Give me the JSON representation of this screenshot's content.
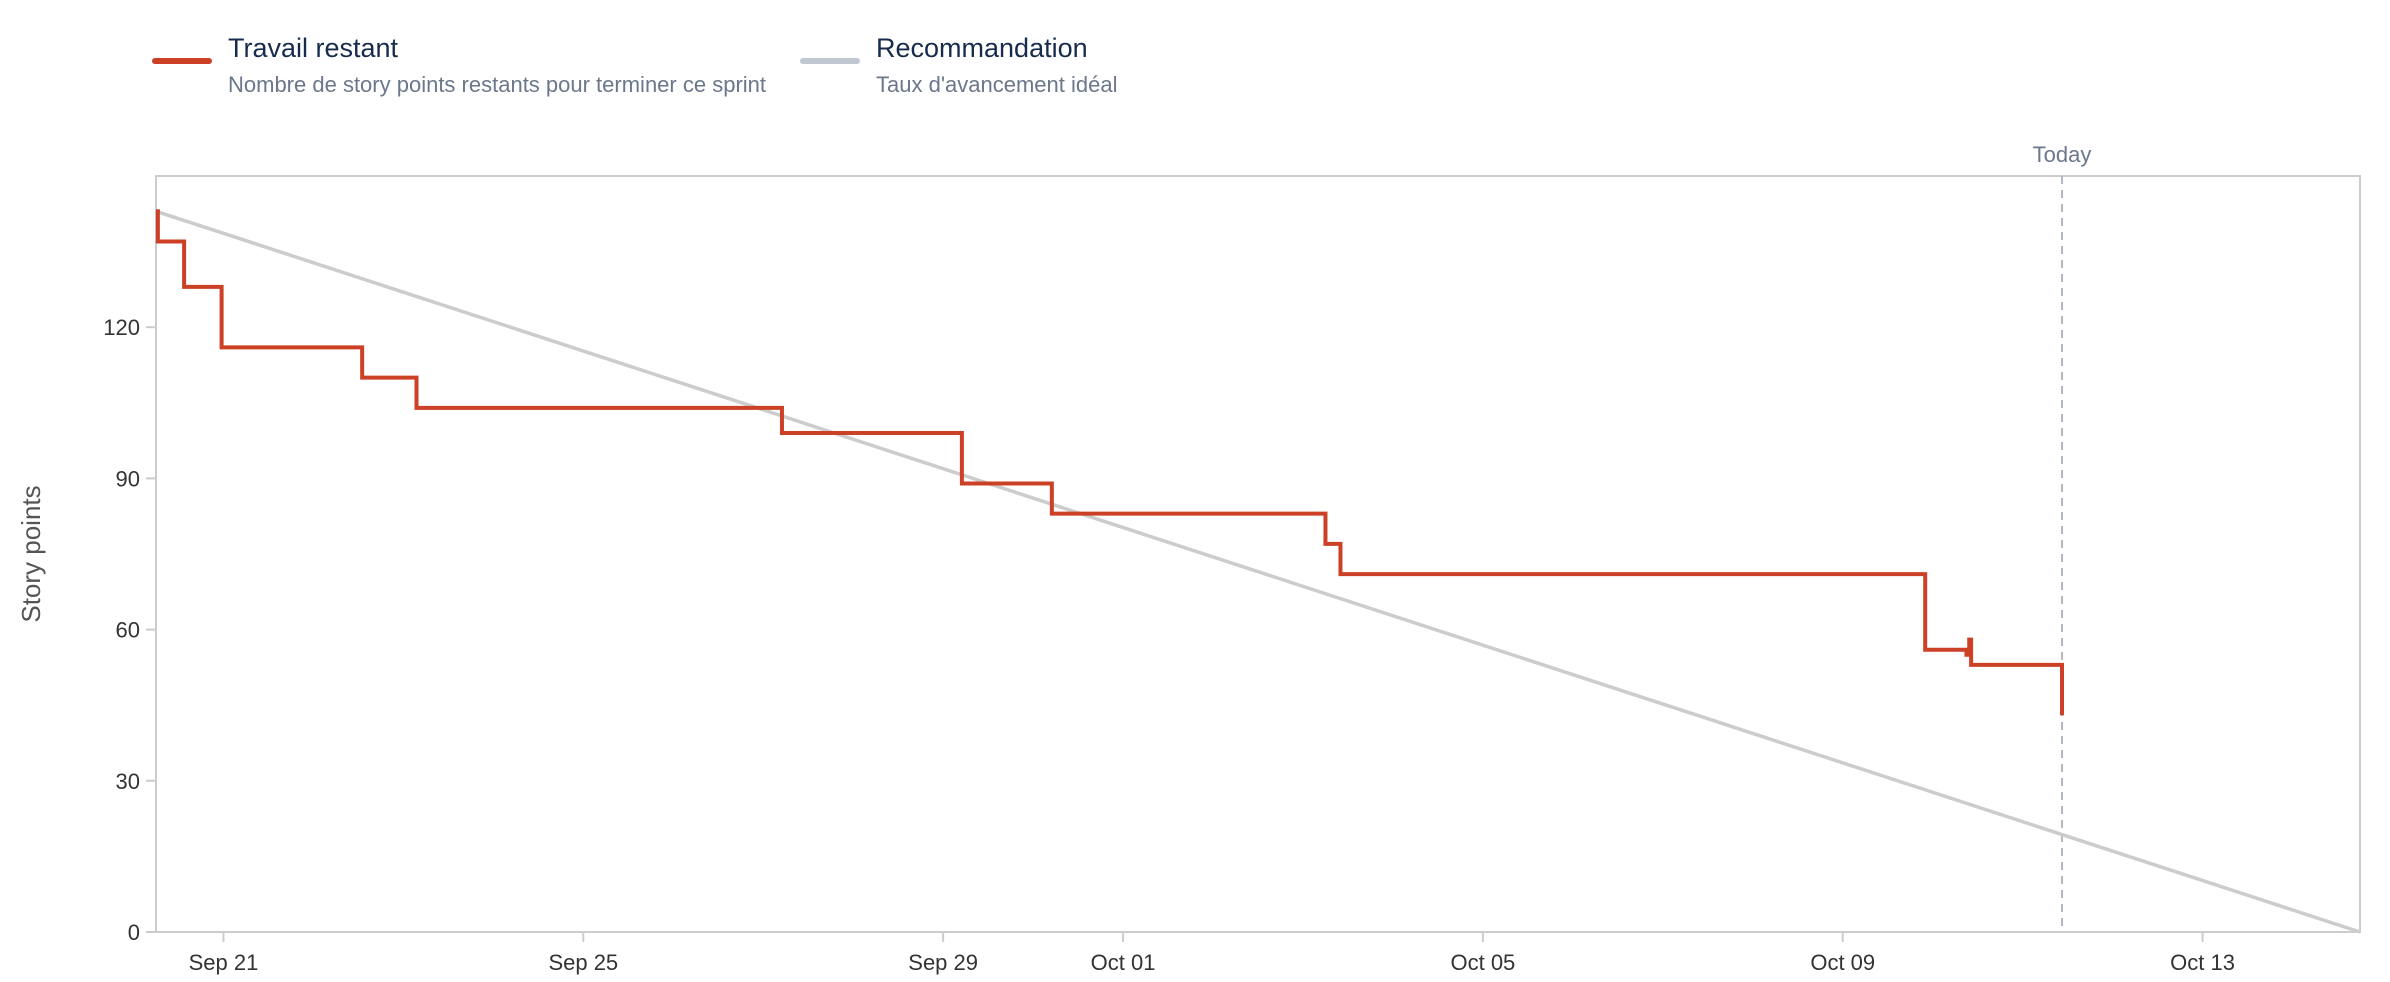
{
  "legend": [
    {
      "title": "Travail restant",
      "description": "Nombre de story points restants pour terminer ce sprint",
      "color": "#cc4125"
    },
    {
      "title": "Recommandation",
      "description": "Taux d'avancement idéal",
      "color": "#c1c7d0"
    }
  ],
  "chart_data": {
    "type": "line",
    "ylabel": "Story points",
    "ylim": [
      0,
      150
    ],
    "yticks": [
      0,
      30,
      60,
      90,
      120
    ],
    "xlim": [
      "2024-09-20T00:00",
      "2024-10-14T12:00"
    ],
    "xticks": [
      {
        "label": "Sep 21",
        "date": "2024-09-20T18:00"
      },
      {
        "label": "Sep 25",
        "date": "2024-09-24T18:00"
      },
      {
        "label": "Sep 29",
        "date": "2024-09-28T18:00"
      },
      {
        "label": "Oct 01",
        "date": "2024-09-30T18:00"
      },
      {
        "label": "Oct 05",
        "date": "2024-10-04T18:00"
      },
      {
        "label": "Oct 09",
        "date": "2024-10-08T18:00"
      },
      {
        "label": "Oct 13",
        "date": "2024-10-12T18:00"
      }
    ],
    "today": {
      "label": "Today",
      "date": "2024-10-11T04:30"
    },
    "grid": false,
    "series": [
      {
        "name": "Travail restant",
        "color": "#cc4125",
        "step": true,
        "points": [
          [
            "2024-09-20T00:00",
            143
          ],
          [
            "2024-09-20T00:30",
            137
          ],
          [
            "2024-09-20T07:30",
            128
          ],
          [
            "2024-09-20T17:30",
            116
          ],
          [
            "2024-09-22T07:00",
            110
          ],
          [
            "2024-09-22T21:30",
            104
          ],
          [
            "2024-09-26T23:00",
            99
          ],
          [
            "2024-09-28T23:00",
            89
          ],
          [
            "2024-09-29T23:00",
            83
          ],
          [
            "2024-10-03T00:00",
            77
          ],
          [
            "2024-10-03T04:00",
            71
          ],
          [
            "2024-10-09T16:00",
            56
          ],
          [
            "2024-10-10T03:00",
            55
          ],
          [
            "2024-10-10T03:45",
            58
          ],
          [
            "2024-10-10T04:15",
            53
          ],
          [
            "2024-10-11T04:30",
            43
          ]
        ]
      },
      {
        "name": "Recommandation",
        "color": "#cccccc",
        "step": false,
        "points": [
          [
            "2024-09-20T00:00",
            143
          ],
          [
            "2024-10-14T12:00",
            0
          ]
        ]
      }
    ]
  }
}
